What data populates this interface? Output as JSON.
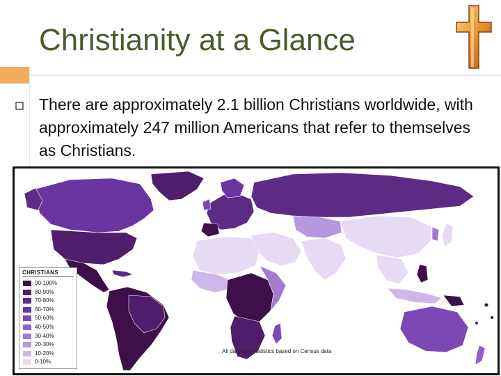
{
  "slide": {
    "title": "Christianity at a Glance",
    "bullet": "There are approximately 2.1 billion Christians worldwide, with approximately 247 million Americans that refer to themselves as Christians."
  },
  "map": {
    "legend_title": "CHRISTIANS",
    "legend": [
      {
        "label": "90-100%",
        "color": "#3f0f4a"
      },
      {
        "label": "80-90%",
        "color": "#4f1d6b"
      },
      {
        "label": "70-80%",
        "color": "#5d2a86"
      },
      {
        "label": "60-70%",
        "color": "#6a35a0"
      },
      {
        "label": "50-60%",
        "color": "#7c48b6"
      },
      {
        "label": "40-50%",
        "color": "#8f5fc5"
      },
      {
        "label": "30-40%",
        "color": "#a27ad2"
      },
      {
        "label": "20-30%",
        "color": "#b698de"
      },
      {
        "label": "10-20%",
        "color": "#cdb7ea"
      },
      {
        "label": "0-10%",
        "color": "#e6daf5"
      }
    ],
    "note": "All data and statistics based on Census data"
  },
  "colors": {
    "title": "#4a5b2a",
    "accent": "#f0ad5e",
    "cross": "#e8a040"
  }
}
